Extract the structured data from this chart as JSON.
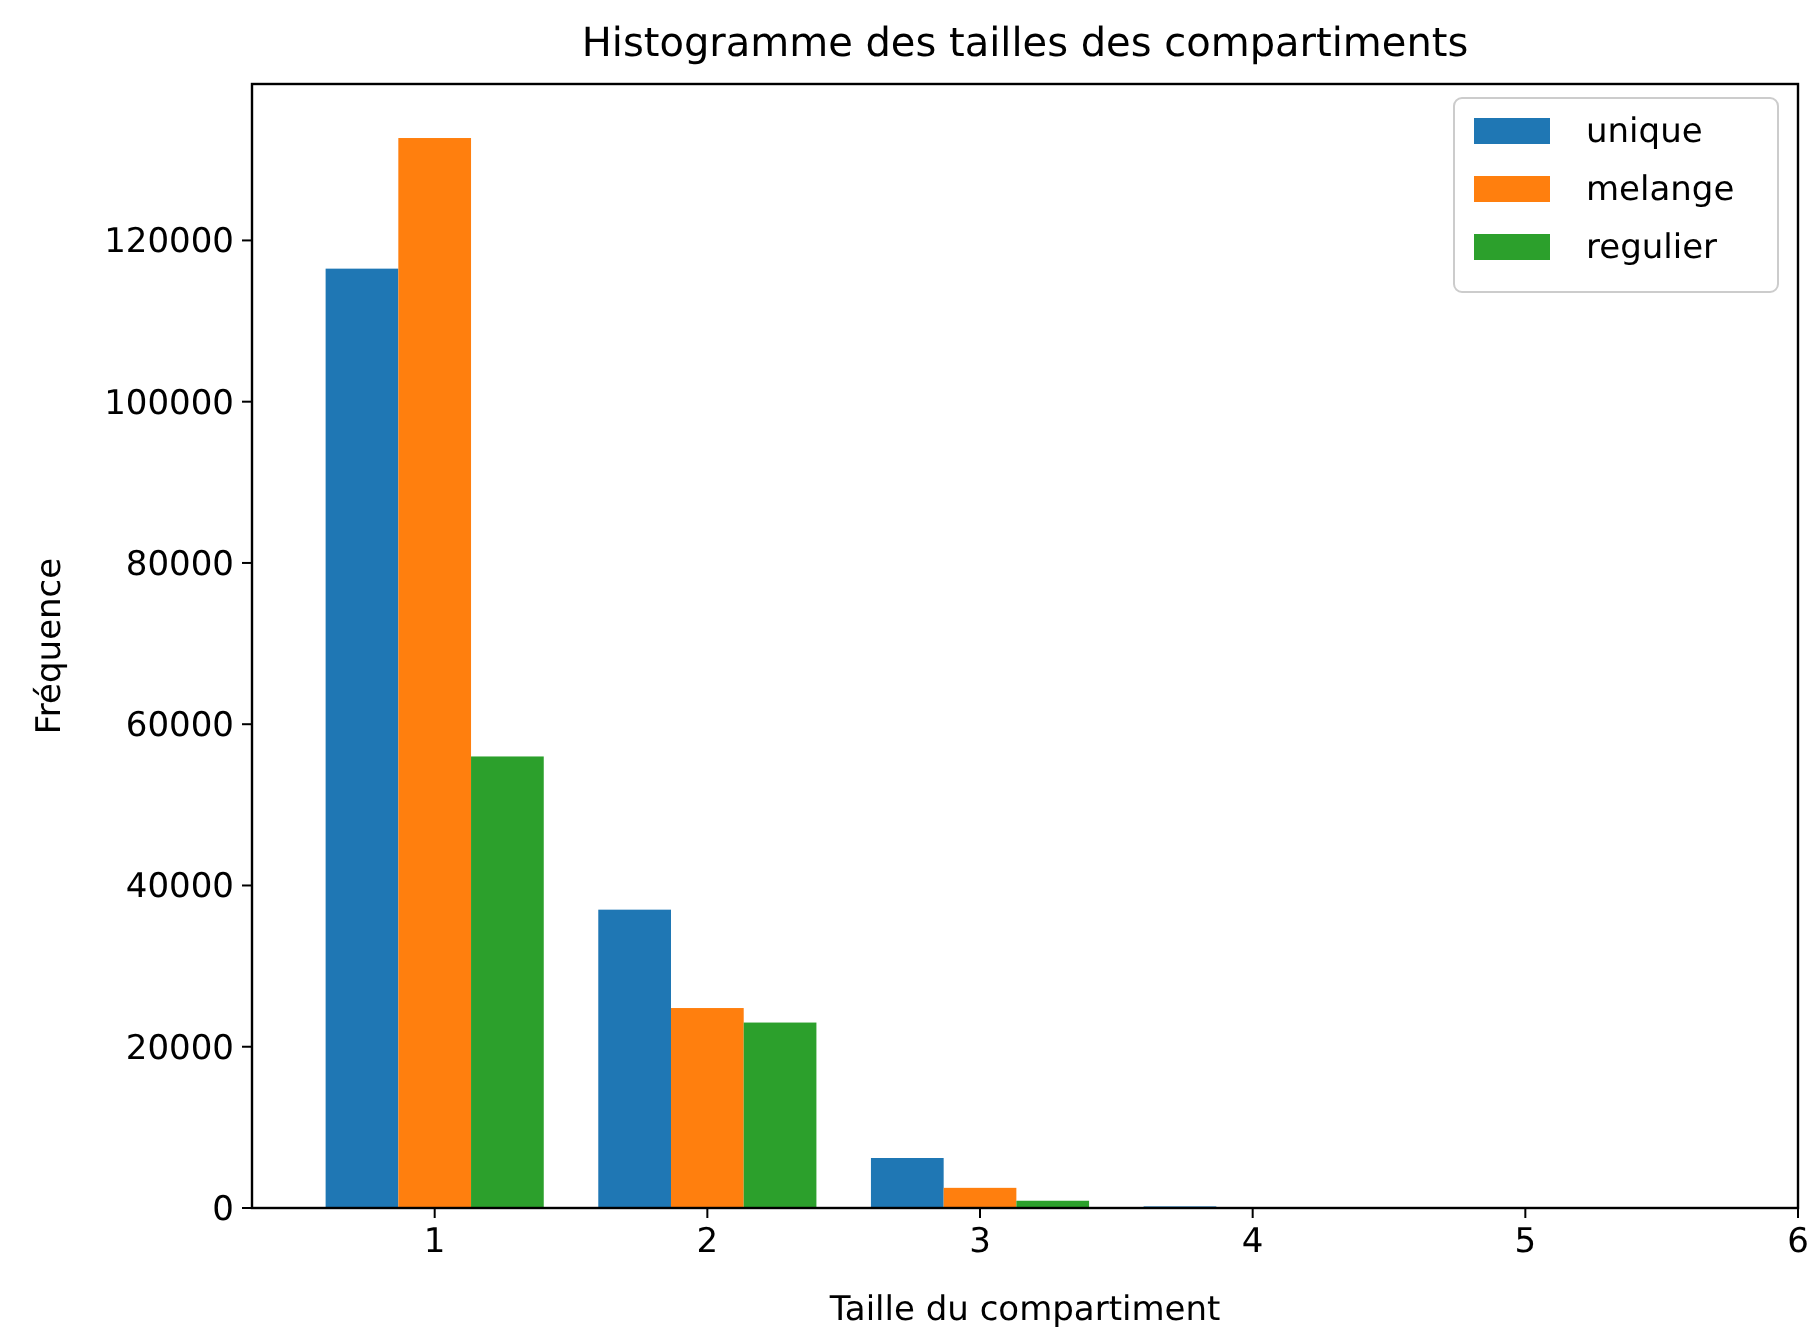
{
  "chart_data": {
    "type": "histogram",
    "title": "Histogramme des tailles des compartiments",
    "xlabel": "Taille du compartiment",
    "ylabel": "Fréquence",
    "bins": [
      0.5,
      1.5,
      2.5,
      3.5,
      4.5
    ],
    "series": [
      {
        "name": "unique",
        "color": "#1f77b4",
        "values": [
          116500,
          37000,
          6200,
          200
        ]
      },
      {
        "name": "melange",
        "color": "#ff7f0e",
        "values": [
          132700,
          24800,
          2500,
          50
        ]
      },
      {
        "name": "regulier",
        "color": "#2ca02c",
        "values": [
          56000,
          23000,
          900,
          0
        ]
      }
    ],
    "xlim": [
      0.33,
      6
    ],
    "xticks": [
      1,
      2,
      3,
      4,
      5,
      6
    ],
    "ylim": [
      0,
      139400
    ],
    "yticks": [
      0,
      20000,
      40000,
      60000,
      80000,
      100000,
      120000
    ],
    "legend": "top right"
  }
}
